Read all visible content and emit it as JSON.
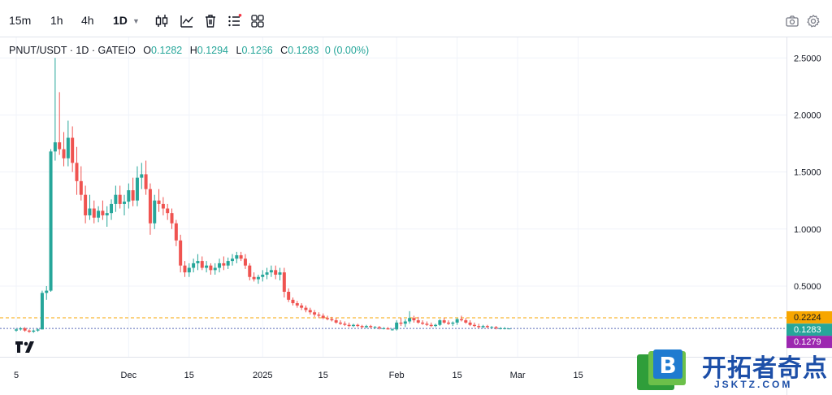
{
  "toolbar": {
    "timeframes": [
      "15m",
      "1h",
      "4h",
      "1D"
    ],
    "active_timeframe": "1D",
    "tools": [
      "candlestick-icon",
      "indicators-icon",
      "trash-icon",
      "list-icon",
      "layout-grid-icon"
    ],
    "right_tools": [
      "camera-icon",
      "settings-icon"
    ]
  },
  "legend": {
    "symbol": "PNUT/USDT · 1D · GATEIO",
    "open_label": "O",
    "open": "0.1282",
    "high_label": "H",
    "high": "0.1294",
    "low_label": "L",
    "low": "0.1266",
    "close_label": "C",
    "close": "0.1283",
    "change": "0 (0.00%)"
  },
  "chart_data": {
    "type": "candlestick",
    "y_ticks": [
      "2.5000",
      "2.0000",
      "1.5000",
      "1.0000",
      "0.5000"
    ],
    "ylim": [
      -0.12,
      2.68
    ],
    "x_ticks": [
      {
        "label": "5",
        "day": 0
      },
      {
        "label": "Dec",
        "day": 26
      },
      {
        "label": "15",
        "day": 40
      },
      {
        "label": "2025",
        "day": 57
      },
      {
        "label": "15",
        "day": 71
      },
      {
        "label": "Feb",
        "day": 88
      },
      {
        "label": "15",
        "day": 102
      },
      {
        "label": "Mar",
        "day": 116
      },
      {
        "label": "15",
        "day": 130
      }
    ],
    "price_labels": [
      {
        "value": 0.2224,
        "text": "0.2224",
        "color": "#f7a600",
        "line": "dashed"
      },
      {
        "value": 0.1283,
        "text": "0.1283",
        "color": "#26a69a",
        "line": "dotted"
      },
      {
        "value": 0.1279,
        "text": "0.1279",
        "color": "#9c27b0",
        "line": "none"
      }
    ],
    "colors": {
      "up": "#26a69a",
      "down": "#ef5350"
    },
    "candles": [
      [
        0.11,
        0.13,
        0.1,
        0.12
      ],
      [
        0.12,
        0.14,
        0.11,
        0.13
      ],
      [
        0.13,
        0.14,
        0.1,
        0.11
      ],
      [
        0.11,
        0.12,
        0.09,
        0.1
      ],
      [
        0.1,
        0.12,
        0.09,
        0.11
      ],
      [
        0.11,
        0.13,
        0.1,
        0.12
      ],
      [
        0.12,
        0.46,
        0.12,
        0.44
      ],
      [
        0.44,
        0.5,
        0.38,
        0.46
      ],
      [
        0.46,
        1.7,
        0.45,
        1.68
      ],
      [
        1.68,
        2.5,
        1.6,
        1.76
      ],
      [
        1.76,
        2.2,
        1.65,
        1.7
      ],
      [
        1.7,
        1.85,
        1.55,
        1.62
      ],
      [
        1.62,
        1.95,
        1.55,
        1.8
      ],
      [
        1.8,
        1.9,
        1.5,
        1.58
      ],
      [
        1.58,
        1.72,
        1.3,
        1.42
      ],
      [
        1.42,
        1.55,
        1.25,
        1.3
      ],
      [
        1.3,
        1.38,
        1.05,
        1.12
      ],
      [
        1.12,
        1.3,
        1.08,
        1.18
      ],
      [
        1.18,
        1.25,
        1.05,
        1.1
      ],
      [
        1.1,
        1.2,
        1.06,
        1.16
      ],
      [
        1.16,
        1.25,
        1.08,
        1.12
      ],
      [
        1.12,
        1.2,
        1.02,
        1.14
      ],
      [
        1.14,
        1.26,
        1.08,
        1.22
      ],
      [
        1.22,
        1.38,
        1.15,
        1.3
      ],
      [
        1.3,
        1.38,
        1.18,
        1.22
      ],
      [
        1.22,
        1.3,
        1.12,
        1.24
      ],
      [
        1.24,
        1.4,
        1.18,
        1.34
      ],
      [
        1.34,
        1.45,
        1.2,
        1.25
      ],
      [
        1.25,
        1.55,
        1.2,
        1.45
      ],
      [
        1.45,
        1.58,
        1.35,
        1.48
      ],
      [
        1.48,
        1.6,
        1.3,
        1.35
      ],
      [
        1.35,
        1.4,
        0.95,
        1.05
      ],
      [
        1.05,
        1.3,
        1.0,
        1.25
      ],
      [
        1.25,
        1.35,
        1.15,
        1.22
      ],
      [
        1.22,
        1.28,
        1.12,
        1.18
      ],
      [
        1.18,
        1.22,
        1.08,
        1.14
      ],
      [
        1.14,
        1.18,
        1.0,
        1.05
      ],
      [
        1.05,
        1.08,
        0.85,
        0.9
      ],
      [
        0.9,
        0.95,
        0.62,
        0.68
      ],
      [
        0.68,
        0.72,
        0.58,
        0.62
      ],
      [
        0.62,
        0.7,
        0.58,
        0.66
      ],
      [
        0.66,
        0.74,
        0.62,
        0.7
      ],
      [
        0.7,
        0.78,
        0.64,
        0.72
      ],
      [
        0.72,
        0.76,
        0.64,
        0.66
      ],
      [
        0.66,
        0.72,
        0.62,
        0.68
      ],
      [
        0.68,
        0.7,
        0.6,
        0.64
      ],
      [
        0.64,
        0.7,
        0.6,
        0.66
      ],
      [
        0.66,
        0.74,
        0.62,
        0.7
      ],
      [
        0.7,
        0.76,
        0.64,
        0.68
      ],
      [
        0.68,
        0.75,
        0.65,
        0.72
      ],
      [
        0.72,
        0.78,
        0.68,
        0.74
      ],
      [
        0.74,
        0.8,
        0.7,
        0.77
      ],
      [
        0.77,
        0.8,
        0.72,
        0.74
      ],
      [
        0.74,
        0.78,
        0.65,
        0.68
      ],
      [
        0.68,
        0.7,
        0.55,
        0.58
      ],
      [
        0.58,
        0.62,
        0.54,
        0.56
      ],
      [
        0.56,
        0.6,
        0.52,
        0.58
      ],
      [
        0.58,
        0.64,
        0.54,
        0.6
      ],
      [
        0.6,
        0.66,
        0.56,
        0.62
      ],
      [
        0.62,
        0.68,
        0.58,
        0.64
      ],
      [
        0.64,
        0.68,
        0.56,
        0.6
      ],
      [
        0.6,
        0.66,
        0.55,
        0.62
      ],
      [
        0.62,
        0.66,
        0.4,
        0.45
      ],
      [
        0.45,
        0.48,
        0.36,
        0.38
      ],
      [
        0.38,
        0.4,
        0.33,
        0.35
      ],
      [
        0.35,
        0.37,
        0.31,
        0.33
      ],
      [
        0.33,
        0.35,
        0.29,
        0.31
      ],
      [
        0.31,
        0.33,
        0.27,
        0.29
      ],
      [
        0.29,
        0.31,
        0.25,
        0.27
      ],
      [
        0.27,
        0.29,
        0.23,
        0.25
      ],
      [
        0.25,
        0.27,
        0.22,
        0.24
      ],
      [
        0.24,
        0.26,
        0.21,
        0.22
      ],
      [
        0.22,
        0.24,
        0.2,
        0.21
      ],
      [
        0.21,
        0.23,
        0.19,
        0.2
      ],
      [
        0.2,
        0.22,
        0.17,
        0.18
      ],
      [
        0.18,
        0.2,
        0.16,
        0.17
      ],
      [
        0.17,
        0.19,
        0.15,
        0.16
      ],
      [
        0.16,
        0.18,
        0.14,
        0.15
      ],
      [
        0.15,
        0.17,
        0.14,
        0.16
      ],
      [
        0.16,
        0.17,
        0.14,
        0.15
      ],
      [
        0.15,
        0.16,
        0.13,
        0.14
      ],
      [
        0.14,
        0.16,
        0.13,
        0.15
      ],
      [
        0.15,
        0.16,
        0.13,
        0.14
      ],
      [
        0.14,
        0.15,
        0.13,
        0.14
      ],
      [
        0.14,
        0.15,
        0.12,
        0.13
      ],
      [
        0.13,
        0.14,
        0.12,
        0.13
      ],
      [
        0.13,
        0.14,
        0.12,
        0.12
      ],
      [
        0.12,
        0.13,
        0.11,
        0.12
      ],
      [
        0.12,
        0.2,
        0.11,
        0.18
      ],
      [
        0.18,
        0.22,
        0.15,
        0.17
      ],
      [
        0.17,
        0.21,
        0.14,
        0.19
      ],
      [
        0.19,
        0.28,
        0.17,
        0.22
      ],
      [
        0.22,
        0.24,
        0.18,
        0.2
      ],
      [
        0.2,
        0.23,
        0.17,
        0.18
      ],
      [
        0.18,
        0.2,
        0.16,
        0.17
      ],
      [
        0.17,
        0.19,
        0.15,
        0.16
      ],
      [
        0.16,
        0.18,
        0.14,
        0.15
      ],
      [
        0.15,
        0.17,
        0.14,
        0.16
      ],
      [
        0.16,
        0.21,
        0.15,
        0.2
      ],
      [
        0.2,
        0.22,
        0.17,
        0.18
      ],
      [
        0.18,
        0.2,
        0.16,
        0.17
      ],
      [
        0.17,
        0.19,
        0.15,
        0.18
      ],
      [
        0.18,
        0.22,
        0.16,
        0.21
      ],
      [
        0.21,
        0.24,
        0.19,
        0.2
      ],
      [
        0.2,
        0.22,
        0.17,
        0.18
      ],
      [
        0.18,
        0.2,
        0.15,
        0.16
      ],
      [
        0.16,
        0.18,
        0.14,
        0.15
      ],
      [
        0.15,
        0.17,
        0.13,
        0.14
      ],
      [
        0.14,
        0.16,
        0.13,
        0.15
      ],
      [
        0.15,
        0.16,
        0.13,
        0.14
      ],
      [
        0.14,
        0.15,
        0.13,
        0.14
      ],
      [
        0.14,
        0.15,
        0.12,
        0.13
      ],
      [
        0.13,
        0.14,
        0.12,
        0.13
      ],
      [
        0.13,
        0.14,
        0.12,
        0.13
      ],
      [
        0.1282,
        0.1294,
        0.1266,
        0.1283
      ]
    ]
  },
  "watermark": {
    "title": "开拓者奇点",
    "url": "JSKTZ.COM",
    "letter": "B"
  }
}
